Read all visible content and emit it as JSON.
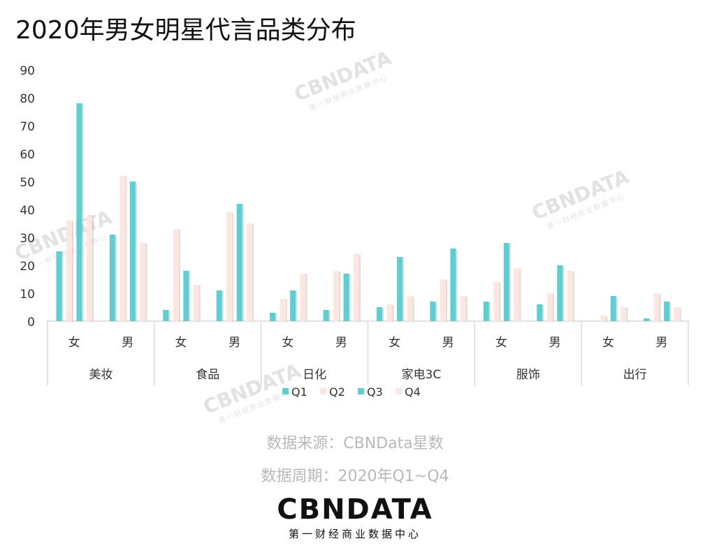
{
  "title": "2020年男女明星代言品类分布",
  "source": "数据来源：CBNData星数",
  "period": "数据周期：2020年Q1~Q4",
  "logo": {
    "text": "CBNDATA",
    "subtitle": "第一财经商业数据中心"
  },
  "watermark": {
    "text": "CBNDATA",
    "subtitle": "第一财经商业数据中心"
  },
  "colors": {
    "teal": "#5ccfd2",
    "peach": "#fbe7df",
    "axis": "#d9d9d9",
    "text": "#333333"
  },
  "chart_data": {
    "type": "bar",
    "ylim": [
      0,
      90
    ],
    "yticks": [
      0,
      10,
      20,
      30,
      40,
      50,
      60,
      70,
      80,
      90
    ],
    "grid": false,
    "legend": "bottom",
    "groups": [
      {
        "name": "美妆",
        "genders": [
          "女",
          "男"
        ]
      },
      {
        "name": "食品",
        "genders": [
          "女",
          "男"
        ]
      },
      {
        "name": "日化",
        "genders": [
          "女",
          "男"
        ]
      },
      {
        "name": "家电3C",
        "genders": [
          "女",
          "男"
        ]
      },
      {
        "name": "服饰",
        "genders": [
          "女",
          "男"
        ]
      },
      {
        "name": "出行",
        "genders": [
          "女",
          "男"
        ]
      }
    ],
    "categories": [
      "美妆-女",
      "美妆-男",
      "食品-女",
      "食品-男",
      "日化-女",
      "日化-男",
      "家电3C-女",
      "家电3C-男",
      "服饰-女",
      "服饰-男",
      "出行-女",
      "出行-男"
    ],
    "series": [
      {
        "name": "Q1",
        "color": "#5ccfd2",
        "values": [
          25,
          31,
          4,
          11,
          3,
          4,
          5,
          7,
          7,
          6,
          0,
          1
        ]
      },
      {
        "name": "Q2",
        "color": "#fbe7df",
        "values": [
          36,
          52,
          33,
          39,
          8,
          18,
          6,
          15,
          14,
          10,
          2,
          10
        ]
      },
      {
        "name": "Q3",
        "color": "#5ccfd2",
        "values": [
          78,
          50,
          18,
          42,
          11,
          17,
          23,
          26,
          28,
          20,
          9,
          7
        ]
      },
      {
        "name": "Q4",
        "color": "#fbe7df",
        "values": [
          38,
          28,
          13,
          35,
          17,
          24,
          9,
          9,
          19,
          18,
          5,
          5
        ]
      }
    ]
  }
}
